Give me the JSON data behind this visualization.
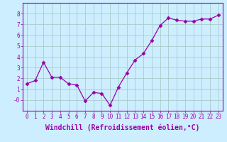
{
  "x": [
    0,
    1,
    2,
    3,
    4,
    5,
    6,
    7,
    8,
    9,
    10,
    11,
    12,
    13,
    14,
    15,
    16,
    17,
    18,
    19,
    20,
    21,
    22,
    23
  ],
  "y": [
    1.5,
    1.8,
    3.5,
    2.1,
    2.1,
    1.5,
    1.4,
    -0.1,
    0.7,
    0.6,
    -0.5,
    1.2,
    2.5,
    3.7,
    4.3,
    5.5,
    6.9,
    7.6,
    7.4,
    7.3,
    7.3,
    7.5,
    7.5,
    7.85
  ],
  "line_color": "#9900aa",
  "marker": "D",
  "marker_size": 2.5,
  "bg_color": "#cceeff",
  "grid_color": "#aacccc",
  "xlabel": "Windchill (Refroidissement éolien,°C)",
  "xlabel_color": "#9900aa",
  "tick_color": "#9900aa",
  "xlim": [
    -0.5,
    23.5
  ],
  "ylim": [
    -1.0,
    9.0
  ],
  "ytick_labels": [
    "-0",
    "1",
    "2",
    "3",
    "4",
    "5",
    "6",
    "7",
    "8"
  ],
  "ytick_values": [
    -0.0,
    1,
    2,
    3,
    4,
    5,
    6,
    7,
    8
  ],
  "xticks": [
    0,
    1,
    2,
    3,
    4,
    5,
    6,
    7,
    8,
    9,
    10,
    11,
    12,
    13,
    14,
    15,
    16,
    17,
    18,
    19,
    20,
    21,
    22,
    23
  ],
  "tick_fontsize": 5.5,
  "xlabel_fontsize": 7.0
}
